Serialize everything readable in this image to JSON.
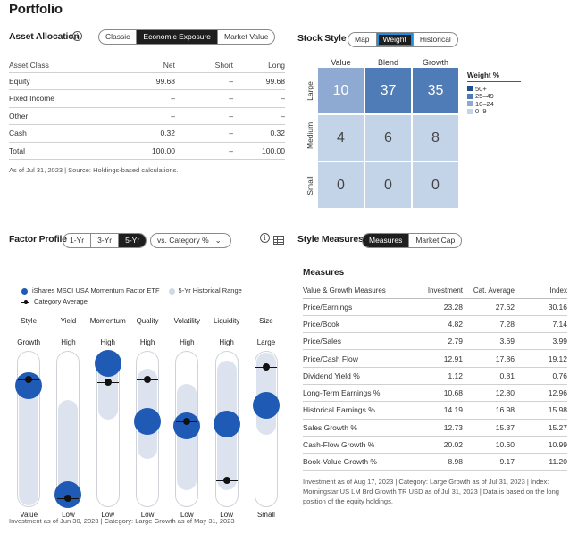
{
  "title": "Portfolio",
  "asset_allocation": {
    "title": "Asset Allocation",
    "tabs": [
      "Classic",
      "Economic Exposure",
      "Market Value"
    ],
    "active_tab": 1,
    "headers": [
      "Asset Class",
      "Net",
      "Short",
      "Long"
    ],
    "rows": [
      {
        "name": "Equity",
        "net": "99.68",
        "short": "–",
        "long": "99.68"
      },
      {
        "name": "Fixed Income",
        "net": "–",
        "short": "–",
        "long": "–"
      },
      {
        "name": "Other",
        "net": "–",
        "short": "–",
        "long": "–"
      },
      {
        "name": "Cash",
        "net": "0.32",
        "short": "–",
        "long": "0.32"
      },
      {
        "name": "Total",
        "net": "100.00",
        "short": "–",
        "long": "100.00"
      }
    ],
    "note": "As of Jul 31, 2023 | Source: Holdings-based calculations."
  },
  "stock_style": {
    "title": "Stock Style",
    "tabs": [
      "Map",
      "Weight",
      "Historical"
    ],
    "active_tab": 1,
    "columns": [
      "Value",
      "Blend",
      "Growth"
    ],
    "rows": [
      "Large",
      "Medium",
      "Small"
    ],
    "values": [
      [
        "10",
        "37",
        "35"
      ],
      [
        "4",
        "6",
        "8"
      ],
      [
        "0",
        "0",
        "0"
      ]
    ],
    "legend_title": "Weight %",
    "legend": [
      {
        "label": "50+",
        "color": "#1f4f8f"
      },
      {
        "label": "25–49",
        "color": "#4f7bb6"
      },
      {
        "label": "10–24",
        "color": "#8eaad2"
      },
      {
        "label": "0–9",
        "color": "#c3d3e8"
      }
    ]
  },
  "factor_profile": {
    "title": "Factor Profile",
    "tabs": [
      "1-Yr",
      "3-Yr",
      "5-Yr"
    ],
    "active_tab": 2,
    "dropdown": "vs. Category %",
    "legend": [
      "iShares MSCI USA Momentum Factor ETF",
      "5-Yr Historical Range",
      "Category Average"
    ],
    "factors": [
      {
        "name": "Style",
        "high": "Growth",
        "low": "Value",
        "fund": 0.78,
        "avg": 0.82,
        "range": [
          0.0,
          0.85
        ]
      },
      {
        "name": "Yield",
        "high": "High",
        "low": "Low",
        "fund": 0.08,
        "avg": 0.06,
        "range": [
          0.0,
          0.7
        ]
      },
      {
        "name": "Momentum",
        "high": "High",
        "low": "Low",
        "fund": 0.92,
        "avg": 0.8,
        "range": [
          0.55,
          1.0
        ]
      },
      {
        "name": "Quality",
        "high": "High",
        "low": "Low",
        "fund": 0.55,
        "avg": 0.82,
        "range": [
          0.3,
          0.9
        ]
      },
      {
        "name": "Volatility",
        "high": "High",
        "low": "Low",
        "fund": 0.52,
        "avg": 0.55,
        "range": [
          0.1,
          0.8
        ]
      },
      {
        "name": "Liquidity",
        "high": "High",
        "low": "Low",
        "fund": 0.53,
        "avg": 0.17,
        "range": [
          0.1,
          0.95
        ]
      },
      {
        "name": "Size",
        "high": "Large",
        "low": "Small",
        "fund": 0.65,
        "avg": 0.9,
        "range": [
          0.45,
          1.0
        ]
      }
    ],
    "note": "Investment as of Jun 30, 2023 | Category: Large Growth as of May 31, 2023"
  },
  "style_measures": {
    "title": "Style Measures",
    "tabs": [
      "Measures",
      "Market Cap"
    ],
    "active_tab": 0,
    "subtitle": "Measures",
    "headers": [
      "Value & Growth Measures",
      "Investment",
      "Cat. Average",
      "Index"
    ],
    "rows": [
      [
        "Price/Earnings",
        "23.28",
        "27.62",
        "30.16"
      ],
      [
        "Price/Book",
        "4.82",
        "7.28",
        "7.14"
      ],
      [
        "Price/Sales",
        "2.79",
        "3.69",
        "3.99"
      ],
      [
        "Price/Cash Flow",
        "12.91",
        "17.86",
        "19.12"
      ],
      [
        "Dividend Yield %",
        "1.12",
        "0.81",
        "0.76"
      ],
      [
        "Long-Term Earnings %",
        "10.68",
        "12.80",
        "12.96"
      ],
      [
        "Historical Earnings %",
        "14.19",
        "16.98",
        "15.98"
      ],
      [
        "Sales Growth %",
        "12.73",
        "15.37",
        "15.27"
      ],
      [
        "Cash-Flow Growth %",
        "20.02",
        "10.60",
        "10.99"
      ],
      [
        "Book-Value Growth %",
        "8.98",
        "9.17",
        "11.20"
      ]
    ],
    "note": "Investment as of Aug 17, 2023 | Category: Large Growth as of Jul 31, 2023 | Index: Morningstar US LM Brd Growth TR USD as of Jul 31, 2023 | Data is based on the long position of the equity holdings."
  }
}
